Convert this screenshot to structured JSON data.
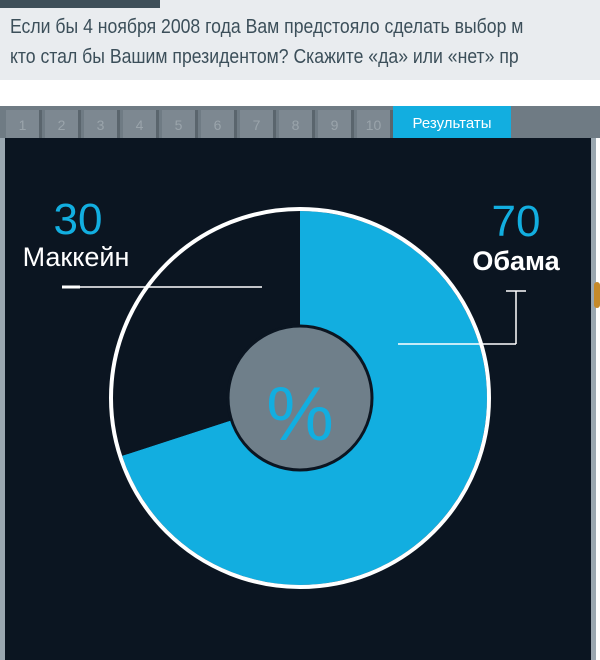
{
  "question": {
    "line1": "Если бы 4 ноября 2008 года Вам предстояло сделать выбор м",
    "line2": "кто стал бы Вашим президентом? Скажите «да» или «нет» пр"
  },
  "tabs": [
    "1",
    "2",
    "3",
    "4",
    "5",
    "6",
    "7",
    "8",
    "9",
    "10"
  ],
  "results_tab": "Результаты",
  "center_symbol": "%",
  "colors": {
    "panel": "#0b1521",
    "obama": "#12aee0",
    "mccain": "#0b1521",
    "ring": "#ffffff",
    "center": "#6f7f8a"
  },
  "chart_data": {
    "type": "pie",
    "slices": [
      {
        "name": "Маккейн",
        "value": 30
      },
      {
        "name": "Обама",
        "value": 70
      }
    ]
  }
}
